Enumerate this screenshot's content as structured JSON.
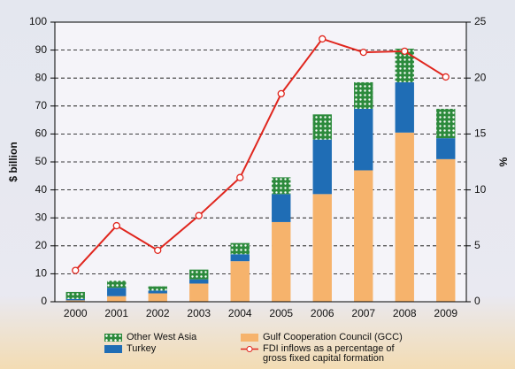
{
  "chart_data": {
    "type": "bar",
    "categories": [
      "2000",
      "2001",
      "2002",
      "2003",
      "2004",
      "2005",
      "2006",
      "2007",
      "2008",
      "2009"
    ],
    "series": [
      {
        "name": "Gulf Cooperation Council (GCC)",
        "color": "#f6b36c",
        "values": [
          0.5,
          2,
          3,
          6.5,
          14.5,
          28.5,
          38.5,
          47,
          60.5,
          51
        ]
      },
      {
        "name": "Turkey",
        "color": "#1f6db5",
        "values": [
          0.5,
          3,
          1,
          1.5,
          2.5,
          10,
          19.5,
          22,
          18,
          7.5
        ]
      },
      {
        "name": "Other West Asia",
        "color": "#2c8a3c",
        "values": [
          2.5,
          2.5,
          1.5,
          3.5,
          4,
          6,
          9,
          9.5,
          12,
          10.5
        ]
      },
      {
        "name": "FDI inflows as a percentage of gross fixed capital formation",
        "color": "#e0261e",
        "type": "line",
        "axis": "y2",
        "values": [
          2.8,
          6.8,
          4.6,
          7.7,
          11.1,
          18.6,
          23.5,
          22.3,
          22.4,
          20.1
        ]
      }
    ],
    "ylabel": "$ billion",
    "y2label": "%",
    "ylim": [
      0,
      100
    ],
    "yticks": [
      0,
      10,
      20,
      30,
      40,
      50,
      60,
      70,
      80,
      90,
      100
    ],
    "y2lim": [
      0,
      25
    ],
    "y2ticks": [
      0,
      5,
      10,
      15,
      20,
      25
    ],
    "grid": true
  }
}
